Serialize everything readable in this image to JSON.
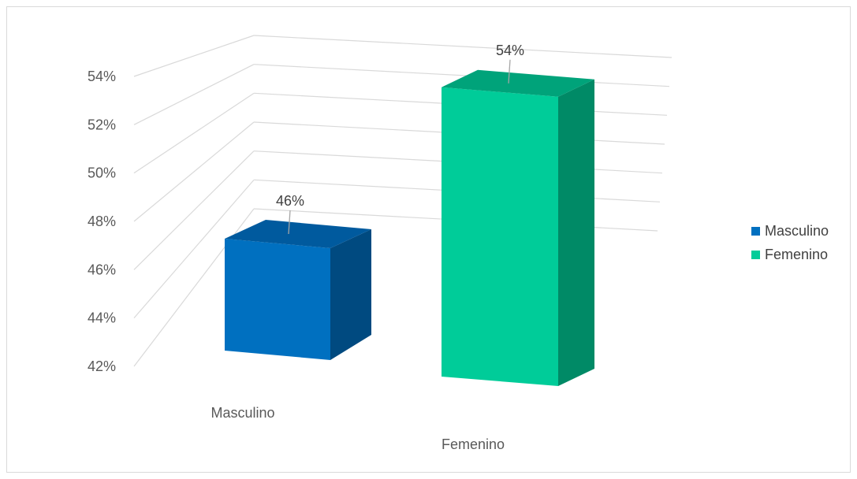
{
  "chart_data": {
    "type": "bar",
    "categories": [
      "Masculino",
      "Femenino"
    ],
    "values": [
      46,
      54
    ],
    "data_labels": [
      "46%",
      "54%"
    ],
    "ylim": [
      42,
      54
    ],
    "yticks": [
      "42%",
      "44%",
      "46%",
      "48%",
      "50%",
      "52%",
      "54%"
    ],
    "legend": {
      "position": "right",
      "items": [
        {
          "label": "Masculino",
          "color": "#0070c0"
        },
        {
          "label": "Femenino",
          "color": "#00cc99"
        }
      ]
    },
    "grid": true,
    "style": "3d-column"
  }
}
